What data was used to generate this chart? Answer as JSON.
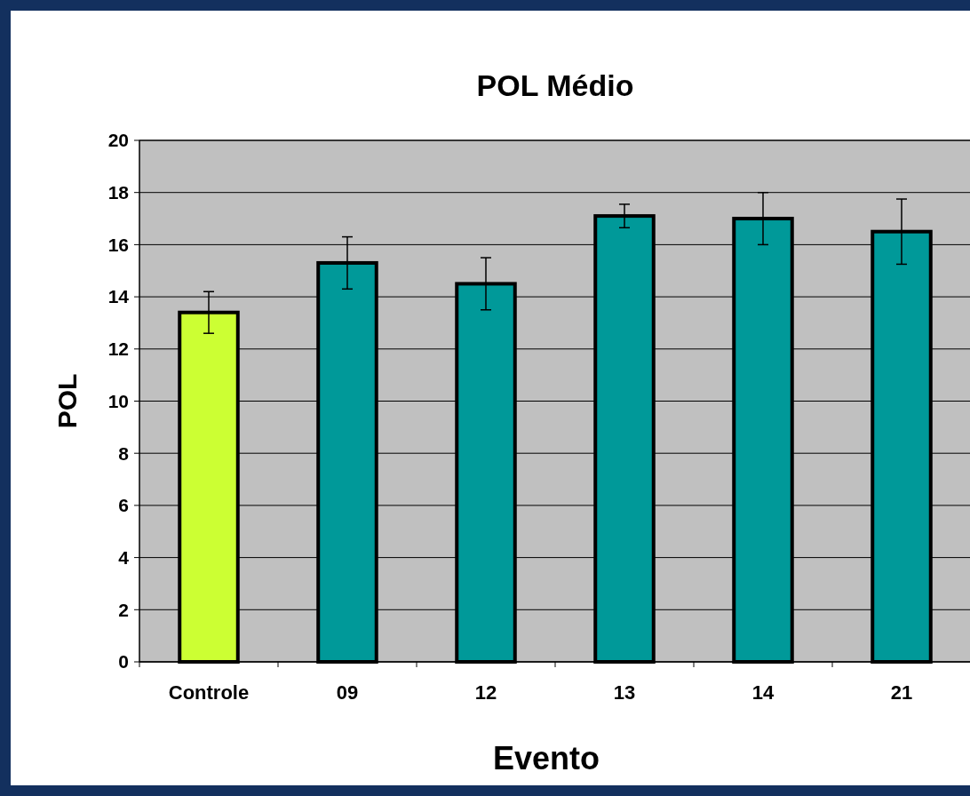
{
  "chart_data": {
    "type": "bar",
    "title": "POL Médio",
    "xlabel": "Evento",
    "ylabel": "POL",
    "categories": [
      "Controle",
      "09",
      "12",
      "13",
      "14",
      "21"
    ],
    "values": [
      13.4,
      15.3,
      14.5,
      17.1,
      17.0,
      16.5
    ],
    "colors": [
      "#ccff33",
      "#009999",
      "#009999",
      "#009999",
      "#009999",
      "#009999"
    ],
    "errors": [
      0.8,
      1.0,
      1.0,
      0.45,
      1.0,
      1.25
    ],
    "ylim": [
      0,
      20
    ],
    "yticks": [
      0,
      2,
      4,
      6,
      8,
      10,
      12,
      14,
      16,
      18,
      20
    ],
    "grid": "y"
  }
}
